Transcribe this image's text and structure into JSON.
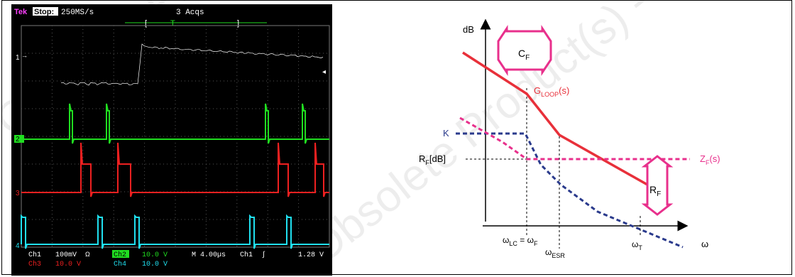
{
  "oscilloscope": {
    "brand": "Tek",
    "state": "Stop:",
    "sample_rate": "250MS/s",
    "acquisitions": "3 Acqs",
    "trigger_bracket_left": "[",
    "trigger_marker": "T",
    "trigger_bracket_right": "]",
    "channel_markers": [
      "1",
      "2",
      "3",
      "4"
    ],
    "readouts": {
      "ch1_name": "Ch1",
      "ch1_scale": "100mV",
      "ch1_coupling": "Ω",
      "ch2_name": "Ch2",
      "ch2_scale": "10.0 V",
      "ch3_name": "Ch3",
      "ch3_scale": "10.0 V",
      "ch4_name": "Ch4",
      "ch4_scale": "10.0 V",
      "timebase": "M 4.00µs",
      "trigger_source": "Ch1",
      "trigger_slope": "∫",
      "trigger_level": "1.28 V"
    },
    "colors": {
      "ch1": "#000000",
      "ch2": "#20dd20",
      "ch3": "#ee2020",
      "ch4": "#20e0f0",
      "tek": "#ff40ff"
    }
  },
  "bode_diagram": {
    "y_axis_label": "dB",
    "x_axis_label": "ω",
    "cf_box_label": "C",
    "cf_box_sub": "F",
    "gloop_label": "G",
    "gloop_sub": "LOOP",
    "gloop_suffix": "(s)",
    "k_label": "K",
    "rf_db_label": "R",
    "rf_db_sub": "F",
    "rf_db_suffix": "[dB]",
    "zf_label": "Z",
    "zf_sub": "F",
    "zf_suffix": "(s)",
    "rf_box_label": "R",
    "rf_box_sub": "F",
    "omega_lc_label": "ω",
    "omega_lc_sub": "LC",
    "omega_lc_eq": " = ω",
    "omega_lc_eq_sub": "F",
    "omega_esr_label": "ω",
    "omega_esr_sub": "ESR",
    "omega_t_label": "ω",
    "omega_t_sub": "T",
    "colors": {
      "gloop": "#e8303a",
      "k": "#2a3a8c",
      "zf": "#e8308c",
      "box": "#e8308c"
    }
  },
  "watermark": {
    "text": "Obsolete Product(s) - Obsolete Product(s)"
  }
}
